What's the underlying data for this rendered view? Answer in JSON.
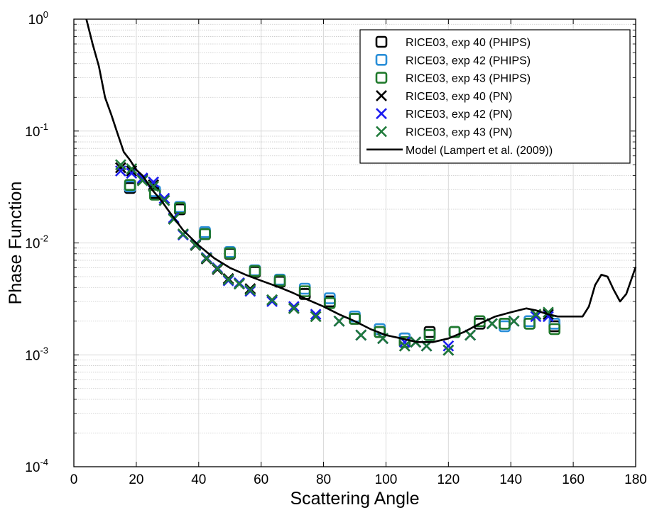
{
  "chart_data": {
    "type": "scatter",
    "title": "",
    "xlabel": "Scattering Angle",
    "ylabel": "Phase Function",
    "xlim": [
      0,
      180
    ],
    "ylim": [
      0.0001,
      1
    ],
    "yscale": "log",
    "grid": true,
    "legend_position": "top-right",
    "x_ticks": [
      0,
      20,
      40,
      60,
      80,
      100,
      120,
      140,
      160,
      180
    ],
    "y_ticks": [
      {
        "value": 0.0001,
        "base": "10",
        "exp": "-4"
      },
      {
        "value": 0.001,
        "base": "10",
        "exp": "-3"
      },
      {
        "value": 0.01,
        "base": "10",
        "exp": "-2"
      },
      {
        "value": 0.1,
        "base": "10",
        "exp": "-1"
      },
      {
        "value": 1,
        "base": "10",
        "exp": "0"
      }
    ],
    "series": [
      {
        "name": "RICE03, exp 40 (PHIPS)",
        "marker": "square",
        "color": "#000000",
        "x": [
          18,
          26,
          34,
          42,
          50,
          58,
          66,
          74,
          82,
          90,
          98,
          106,
          114,
          122,
          130,
          138,
          146,
          154
        ],
        "y": [
          0.031,
          0.028,
          0.02,
          0.012,
          0.008,
          0.0055,
          0.0045,
          0.0035,
          0.003,
          0.0021,
          0.0016,
          0.0014,
          0.0016,
          0.0016,
          0.0019,
          0.0019,
          0.0019,
          0.0018
        ]
      },
      {
        "name": "RICE03, exp 42 (PHIPS)",
        "marker": "square",
        "color": "#2b8fd8",
        "x": [
          18,
          26,
          34,
          42,
          50,
          58,
          66,
          74,
          82,
          90,
          98,
          106,
          114,
          122,
          130,
          138,
          146,
          154
        ],
        "y": [
          0.032,
          0.029,
          0.021,
          0.0125,
          0.0083,
          0.0057,
          0.0047,
          0.0039,
          0.0032,
          0.0022,
          0.0017,
          0.0014,
          0.0015,
          0.0016,
          0.002,
          0.0018,
          0.002,
          0.0019
        ]
      },
      {
        "name": "RICE03, exp 43 (PHIPS)",
        "marker": "square",
        "color": "#207a2c",
        "x": [
          18,
          26,
          34,
          42,
          50,
          58,
          66,
          74,
          82,
          90,
          98,
          106,
          114,
          122,
          130,
          138,
          146,
          154
        ],
        "y": [
          0.033,
          0.027,
          0.0205,
          0.012,
          0.0081,
          0.0056,
          0.0046,
          0.0037,
          0.0029,
          0.0021,
          0.0016,
          0.0013,
          0.0015,
          0.0016,
          0.002,
          0.0019,
          0.0019,
          0.0017
        ]
      },
      {
        "name": "RICE03, exp 40 (PN)",
        "marker": "x",
        "color": "#000000",
        "x": [
          15,
          18.5,
          22,
          25.5,
          29,
          32,
          35,
          39,
          42.5,
          46,
          49.5,
          53,
          56.5,
          63.5,
          70.5,
          77.5,
          85,
          92,
          99,
          106,
          109.5,
          113,
          120,
          127,
          134,
          141,
          148,
          152
        ],
        "y": [
          0.047,
          0.044,
          0.037,
          0.033,
          0.024,
          0.0165,
          0.012,
          0.0095,
          0.0072,
          0.0058,
          0.0048,
          0.0043,
          0.0039,
          0.0031,
          0.0026,
          0.0022,
          0.002,
          0.0015,
          0.0014,
          0.0012,
          0.0013,
          0.0012,
          0.0011,
          0.0015,
          0.0019,
          0.002,
          0.0023,
          0.0023
        ]
      },
      {
        "name": "RICE03, exp 42 (PN)",
        "marker": "x",
        "color": "#1c1cf0",
        "x": [
          15,
          18.5,
          22,
          25.5,
          29,
          32,
          35,
          39,
          42.5,
          46,
          49.5,
          53,
          56.5,
          63.5,
          70.5,
          77.5,
          85,
          92,
          99,
          106,
          109.5,
          113,
          120,
          127,
          134,
          141,
          148,
          152
        ],
        "y": [
          0.044,
          0.042,
          0.038,
          0.035,
          0.025,
          0.0168,
          0.0118,
          0.0097,
          0.0074,
          0.006,
          0.0046,
          0.0044,
          0.0037,
          0.003,
          0.0027,
          0.0023,
          0.002,
          0.0015,
          0.0014,
          0.0013,
          0.0013,
          0.0012,
          0.0012,
          0.0015,
          0.0019,
          0.002,
          0.0022,
          0.0022
        ]
      },
      {
        "name": "RICE03, exp 43 (PN)",
        "marker": "x",
        "color": "#1f7a3a",
        "x": [
          15,
          18.5,
          22,
          25.5,
          29,
          32,
          35,
          39,
          42.5,
          46,
          49.5,
          53,
          56.5,
          63.5,
          70.5,
          77.5,
          85,
          92,
          99,
          106,
          109.5,
          113,
          120,
          127,
          134,
          141,
          148,
          152
        ],
        "y": [
          0.05,
          0.046,
          0.036,
          0.032,
          0.024,
          0.0163,
          0.012,
          0.0096,
          0.0073,
          0.0059,
          0.0047,
          0.0043,
          0.0038,
          0.0031,
          0.0026,
          0.0022,
          0.002,
          0.0015,
          0.0014,
          0.0012,
          0.0013,
          0.0012,
          0.0011,
          0.0015,
          0.0019,
          0.002,
          0.0023,
          0.0024
        ]
      },
      {
        "name": "Model (Lampert et al. (2009))",
        "marker": "line",
        "color": "#000000",
        "x": [
          4,
          6,
          8,
          10,
          12,
          14,
          16,
          18,
          20,
          22,
          25,
          28,
          30,
          35,
          40,
          45,
          50,
          55,
          60,
          65,
          70,
          75,
          80,
          85,
          90,
          95,
          100,
          105,
          110,
          115,
          120,
          125,
          130,
          135,
          140,
          145,
          148,
          152,
          155,
          160,
          163,
          165,
          167,
          169,
          171,
          173,
          175,
          177,
          180
        ],
        "y": [
          1.0,
          0.6,
          0.38,
          0.2,
          0.14,
          0.095,
          0.065,
          0.055,
          0.045,
          0.04,
          0.03,
          0.024,
          0.02,
          0.013,
          0.0095,
          0.0073,
          0.006,
          0.0052,
          0.0046,
          0.0041,
          0.0036,
          0.0031,
          0.0027,
          0.0023,
          0.002,
          0.0017,
          0.0015,
          0.0014,
          0.0013,
          0.0013,
          0.0014,
          0.0016,
          0.0019,
          0.0022,
          0.0024,
          0.0026,
          0.0025,
          0.0023,
          0.0022,
          0.0022,
          0.0022,
          0.0027,
          0.0042,
          0.0052,
          0.005,
          0.0038,
          0.003,
          0.0035,
          0.0061
        ]
      }
    ]
  }
}
